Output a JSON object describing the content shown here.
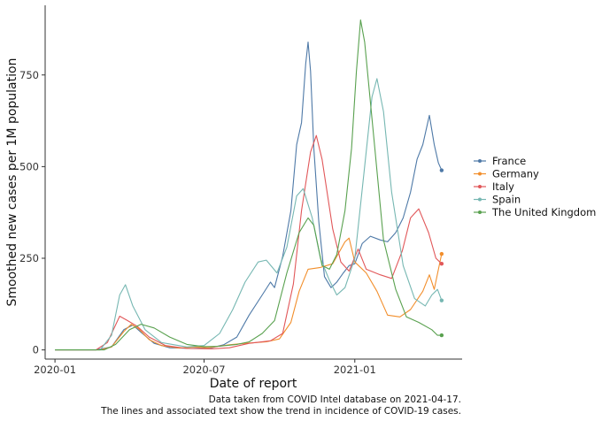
{
  "chart_data": {
    "type": "line",
    "xlabel": "Date of report",
    "ylabel": "Smoothed new cases per 1M population",
    "xlim": [
      "2019-12-20",
      "2021-05-12"
    ],
    "ylim": [
      -25,
      940
    ],
    "x_ticks": [
      {
        "date": "2020-01-01",
        "label": "2020-01"
      },
      {
        "date": "2020-07-01",
        "label": "2020-07"
      },
      {
        "date": "2021-01-01",
        "label": "2021-01"
      }
    ],
    "y_ticks": [
      0,
      250,
      500,
      750
    ],
    "grid": false,
    "legend_position": "right",
    "caption": [
      "Data taken from COVID Intel database on 2021-04-17.",
      "The lines and associated text show the trend in incidence of COVID-19 cases."
    ],
    "series": [
      {
        "name": "France",
        "color": "#4E79A7",
        "points": [
          [
            "2020-01-01",
            0
          ],
          [
            "2020-02-20",
            0
          ],
          [
            "2020-03-10",
            8
          ],
          [
            "2020-03-25",
            55
          ],
          [
            "2020-04-05",
            68
          ],
          [
            "2020-04-15",
            48
          ],
          [
            "2020-05-01",
            18
          ],
          [
            "2020-05-20",
            6
          ],
          [
            "2020-06-15",
            4
          ],
          [
            "2020-07-10",
            6
          ],
          [
            "2020-07-25",
            14
          ],
          [
            "2020-08-10",
            35
          ],
          [
            "2020-08-25",
            95
          ],
          [
            "2020-09-10",
            150
          ],
          [
            "2020-09-20",
            185
          ],
          [
            "2020-09-25",
            170
          ],
          [
            "2020-10-05",
            255
          ],
          [
            "2020-10-15",
            380
          ],
          [
            "2020-10-22",
            560
          ],
          [
            "2020-10-28",
            620
          ],
          [
            "2020-11-02",
            780
          ],
          [
            "2020-11-05",
            840
          ],
          [
            "2020-11-08",
            760
          ],
          [
            "2020-11-12",
            550
          ],
          [
            "2020-11-18",
            350
          ],
          [
            "2020-11-25",
            200
          ],
          [
            "2020-12-03",
            170
          ],
          [
            "2020-12-10",
            185
          ],
          [
            "2020-12-18",
            210
          ],
          [
            "2020-12-25",
            230
          ],
          [
            "2021-01-01",
            235
          ],
          [
            "2021-01-10",
            290
          ],
          [
            "2021-01-20",
            310
          ],
          [
            "2021-02-01",
            300
          ],
          [
            "2021-02-10",
            295
          ],
          [
            "2021-02-20",
            320
          ],
          [
            "2021-03-01",
            360
          ],
          [
            "2021-03-10",
            430
          ],
          [
            "2021-03-18",
            520
          ],
          [
            "2021-03-25",
            560
          ],
          [
            "2021-04-02",
            640
          ],
          [
            "2021-04-08",
            560
          ],
          [
            "2021-04-13",
            510
          ],
          [
            "2021-04-17",
            490
          ]
        ]
      },
      {
        "name": "Germany",
        "color": "#F28E2B",
        "points": [
          [
            "2020-01-01",
            0
          ],
          [
            "2020-02-25",
            0
          ],
          [
            "2020-03-10",
            8
          ],
          [
            "2020-03-25",
            50
          ],
          [
            "2020-04-03",
            70
          ],
          [
            "2020-04-12",
            58
          ],
          [
            "2020-04-25",
            28
          ],
          [
            "2020-05-10",
            12
          ],
          [
            "2020-06-01",
            5
          ],
          [
            "2020-06-20",
            8
          ],
          [
            "2020-07-05",
            6
          ],
          [
            "2020-08-01",
            14
          ],
          [
            "2020-08-20",
            18
          ],
          [
            "2020-09-15",
            22
          ],
          [
            "2020-10-01",
            30
          ],
          [
            "2020-10-15",
            75
          ],
          [
            "2020-10-25",
            160
          ],
          [
            "2020-11-05",
            220
          ],
          [
            "2020-11-20",
            225
          ],
          [
            "2020-12-05",
            235
          ],
          [
            "2020-12-20",
            295
          ],
          [
            "2020-12-25",
            305
          ],
          [
            "2021-01-01",
            240
          ],
          [
            "2021-01-15",
            210
          ],
          [
            "2021-01-28",
            160
          ],
          [
            "2021-02-10",
            95
          ],
          [
            "2021-02-25",
            90
          ],
          [
            "2021-03-10",
            110
          ],
          [
            "2021-03-25",
            160
          ],
          [
            "2021-04-02",
            205
          ],
          [
            "2021-04-08",
            165
          ],
          [
            "2021-04-14",
            230
          ],
          [
            "2021-04-17",
            262
          ]
        ]
      },
      {
        "name": "Italy",
        "color": "#E15759",
        "points": [
          [
            "2020-01-01",
            0
          ],
          [
            "2020-02-20",
            0
          ],
          [
            "2020-03-05",
            20
          ],
          [
            "2020-03-20",
            92
          ],
          [
            "2020-03-28",
            82
          ],
          [
            "2020-04-10",
            65
          ],
          [
            "2020-04-25",
            35
          ],
          [
            "2020-05-15",
            12
          ],
          [
            "2020-06-10",
            4
          ],
          [
            "2020-07-10",
            3
          ],
          [
            "2020-08-01",
            6
          ],
          [
            "2020-08-25",
            18
          ],
          [
            "2020-09-20",
            25
          ],
          [
            "2020-10-05",
            45
          ],
          [
            "2020-10-18",
            180
          ],
          [
            "2020-10-28",
            380
          ],
          [
            "2020-11-08",
            540
          ],
          [
            "2020-11-15",
            585
          ],
          [
            "2020-11-22",
            520
          ],
          [
            "2020-12-05",
            330
          ],
          [
            "2020-12-15",
            240
          ],
          [
            "2020-12-25",
            215
          ],
          [
            "2021-01-05",
            275
          ],
          [
            "2021-01-15",
            220
          ],
          [
            "2021-02-01",
            205
          ],
          [
            "2021-02-15",
            195
          ],
          [
            "2021-02-28",
            270
          ],
          [
            "2021-03-10",
            360
          ],
          [
            "2021-03-20",
            385
          ],
          [
            "2021-04-01",
            320
          ],
          [
            "2021-04-10",
            250
          ],
          [
            "2021-04-17",
            235
          ]
        ]
      },
      {
        "name": "Spain",
        "color": "#76B7B2",
        "points": [
          [
            "2020-01-01",
            0
          ],
          [
            "2020-02-25",
            0
          ],
          [
            "2020-03-10",
            40
          ],
          [
            "2020-03-20",
            150
          ],
          [
            "2020-03-27",
            178
          ],
          [
            "2020-04-05",
            120
          ],
          [
            "2020-04-20",
            55
          ],
          [
            "2020-05-10",
            20
          ],
          [
            "2020-06-10",
            8
          ],
          [
            "2020-07-01",
            12
          ],
          [
            "2020-07-20",
            45
          ],
          [
            "2020-08-05",
            110
          ],
          [
            "2020-08-20",
            185
          ],
          [
            "2020-09-05",
            240
          ],
          [
            "2020-09-15",
            245
          ],
          [
            "2020-09-28",
            210
          ],
          [
            "2020-10-10",
            280
          ],
          [
            "2020-10-22",
            420
          ],
          [
            "2020-10-30",
            440
          ],
          [
            "2020-11-10",
            360
          ],
          [
            "2020-11-20",
            250
          ],
          [
            "2020-12-01",
            190
          ],
          [
            "2020-12-10",
            150
          ],
          [
            "2020-12-20",
            170
          ],
          [
            "2021-01-01",
            250
          ],
          [
            "2021-01-12",
            480
          ],
          [
            "2021-01-22",
            690
          ],
          [
            "2021-01-28",
            740
          ],
          [
            "2021-02-05",
            650
          ],
          [
            "2021-02-15",
            430
          ],
          [
            "2021-03-01",
            230
          ],
          [
            "2021-03-15",
            140
          ],
          [
            "2021-03-28",
            120
          ],
          [
            "2021-04-05",
            150
          ],
          [
            "2021-04-12",
            165
          ],
          [
            "2021-04-17",
            135
          ]
        ]
      },
      {
        "name": "The United Kingdom",
        "color": "#59A14F",
        "points": [
          [
            "2020-01-01",
            0
          ],
          [
            "2020-03-01",
            0
          ],
          [
            "2020-03-15",
            15
          ],
          [
            "2020-04-01",
            55
          ],
          [
            "2020-04-15",
            70
          ],
          [
            "2020-05-01",
            60
          ],
          [
            "2020-05-20",
            35
          ],
          [
            "2020-06-10",
            15
          ],
          [
            "2020-07-01",
            9
          ],
          [
            "2020-07-20",
            10
          ],
          [
            "2020-08-10",
            15
          ],
          [
            "2020-08-25",
            22
          ],
          [
            "2020-09-10",
            45
          ],
          [
            "2020-09-25",
            80
          ],
          [
            "2020-10-10",
            210
          ],
          [
            "2020-10-25",
            320
          ],
          [
            "2020-11-05",
            360
          ],
          [
            "2020-11-12",
            340
          ],
          [
            "2020-11-22",
            230
          ],
          [
            "2020-12-01",
            220
          ],
          [
            "2020-12-10",
            260
          ],
          [
            "2020-12-20",
            380
          ],
          [
            "2020-12-28",
            550
          ],
          [
            "2021-01-03",
            760
          ],
          [
            "2021-01-08",
            900
          ],
          [
            "2021-01-13",
            840
          ],
          [
            "2021-01-25",
            560
          ],
          [
            "2021-02-05",
            300
          ],
          [
            "2021-02-20",
            165
          ],
          [
            "2021-03-05",
            90
          ],
          [
            "2021-03-20",
            75
          ],
          [
            "2021-04-05",
            55
          ],
          [
            "2021-04-12",
            40
          ],
          [
            "2021-04-17",
            40
          ]
        ]
      }
    ]
  }
}
